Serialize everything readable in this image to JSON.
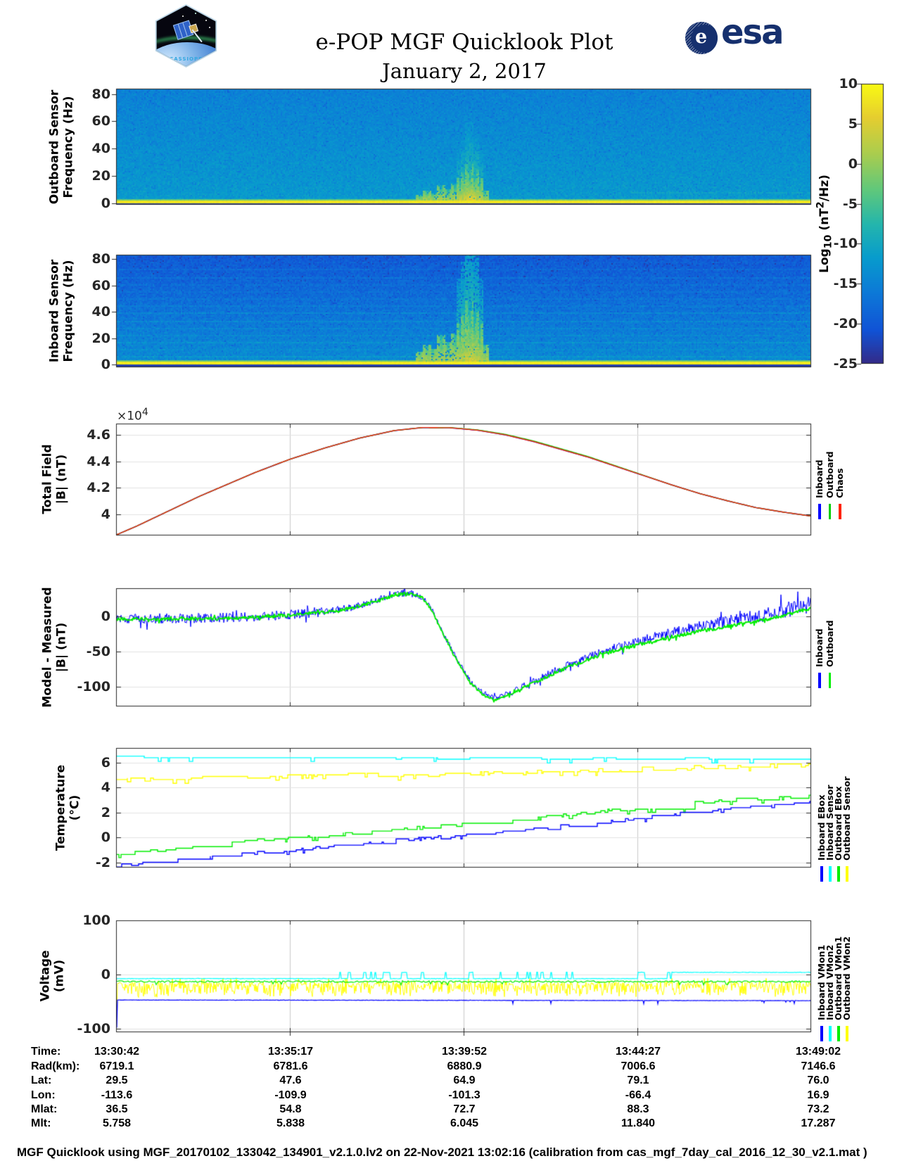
{
  "header": {
    "title": "e-POP MGF Quicklook Plot",
    "date": "January 2, 2017",
    "esa_text": "esa",
    "esa_e": "e",
    "cassiope_text": "CASSIOPE"
  },
  "x_axis": {
    "tick_labels": [
      "13:30:42",
      "13:35:17",
      "13:39:52",
      "13:44:27",
      "13:49:02"
    ]
  },
  "colorbar": {
    "label_prefix": "Log",
    "label_sub": "10",
    "label_mid": " (nT",
    "label_sup": "2",
    "label_suffix": "/Hz)",
    "tick_labels": [
      "10",
      "5",
      "0",
      "-5",
      "-10",
      "-15",
      "-20",
      "-25"
    ],
    "tick_values": [
      10,
      5,
      0,
      -5,
      -10,
      -15,
      -20,
      -25
    ],
    "lim": [
      -25,
      10
    ],
    "colormap": "parula"
  },
  "chart_data": [
    {
      "type": "heatmap",
      "name": "outboard-spectrogram",
      "ylabel": [
        "Outboard Sensor",
        "Frequency (Hz)"
      ],
      "ytick_values": [
        80,
        60,
        40,
        20,
        0
      ],
      "ytick_labels": [
        "80",
        "60",
        "40",
        "20",
        "0"
      ],
      "ylim": [
        0,
        84
      ],
      "background_log_power_bottom": -11.9,
      "background_log_power_top": -15.1,
      "dc_band_log_power": 8,
      "dc_band_max_hz": 1.35,
      "burst_times_frac": [
        0.437,
        0.447,
        0.455,
        0.468,
        0.478,
        0.488,
        0.496,
        0.503,
        0.509,
        0.5155,
        0.522,
        0.53
      ],
      "burst_heights_hz": [
        6,
        9,
        7,
        13,
        10,
        14,
        18,
        22,
        28,
        24,
        18,
        9
      ],
      "burst_strengths": [
        0.5,
        0.6,
        0.5,
        0.7,
        0.6,
        0.7,
        0.85,
        0.95,
        1.0,
        0.95,
        0.85,
        0.55
      ]
    },
    {
      "type": "heatmap",
      "name": "inboard-spectrogram",
      "ylabel": [
        "Inboard Sensor",
        "Frequency (Hz)"
      ],
      "ytick_values": [
        80,
        60,
        40,
        20,
        0
      ],
      "ytick_labels": [
        "80",
        "60",
        "40",
        "20",
        "0"
      ],
      "ylim": [
        0,
        85
      ],
      "background_log_power_bottom": -13.6,
      "background_log_power_top": -20.2,
      "dc_band_log_power": 8.6,
      "dc_band_max_hz": 2.1,
      "stripe_spacing_hz": 5.5,
      "burst_times_frac": [
        0.437,
        0.447,
        0.455,
        0.468,
        0.478,
        0.488,
        0.496,
        0.503,
        0.509,
        0.5155,
        0.522,
        0.53
      ],
      "burst_heights_hz": [
        10,
        15,
        12,
        22,
        17,
        24,
        31,
        37,
        48,
        41,
        31,
        15
      ],
      "burst_strengths": [
        0.45,
        0.55,
        0.45,
        0.63,
        0.54,
        0.63,
        0.77,
        0.86,
        0.9,
        0.86,
        0.77,
        0.5
      ]
    },
    {
      "type": "line",
      "name": "total-field",
      "ylabel": [
        "Total Field",
        "|B| (nT)"
      ],
      "y_mult": "×10",
      "y_mult_exp": "4",
      "ytick_values": [
        4.6,
        4.4,
        4.2,
        4
      ],
      "ytick_labels": [
        "4.6",
        "4.4",
        "4.2",
        "4"
      ],
      "ylim": [
        3.838,
        4.685
      ],
      "legend": {
        "labels": [
          "Inboard",
          "Outboard",
          "Chaos"
        ],
        "colors": [
          "#0000ff",
          "#00cc00",
          "#ff2200"
        ]
      },
      "points": [
        [
          0,
          3.842
        ],
        [
          0.03,
          3.91
        ],
        [
          0.06,
          3.985
        ],
        [
          0.09,
          4.06
        ],
        [
          0.12,
          4.135
        ],
        [
          0.16,
          4.225
        ],
        [
          0.2,
          4.315
        ],
        [
          0.25,
          4.415
        ],
        [
          0.3,
          4.5
        ],
        [
          0.35,
          4.575
        ],
        [
          0.4,
          4.632
        ],
        [
          0.44,
          4.655
        ],
        [
          0.48,
          4.654
        ],
        [
          0.52,
          4.635
        ],
        [
          0.56,
          4.6
        ],
        [
          0.6,
          4.55
        ],
        [
          0.64,
          4.49
        ],
        [
          0.68,
          4.43
        ],
        [
          0.72,
          4.36
        ],
        [
          0.76,
          4.29
        ],
        [
          0.8,
          4.22
        ],
        [
          0.84,
          4.155
        ],
        [
          0.88,
          4.1
        ],
        [
          0.92,
          4.05
        ],
        [
          0.96,
          4.015
        ],
        [
          1,
          3.985
        ]
      ],
      "outboard_offset": 0.005
    },
    {
      "type": "line",
      "name": "model-measured",
      "ylabel": [
        "Model - Measured",
        "|B| (nT)"
      ],
      "ytick_values": [
        0,
        -50,
        -100
      ],
      "ytick_labels": [
        "0",
        "-50",
        "-100"
      ],
      "ylim": [
        -128,
        40
      ],
      "legend": {
        "labels": [
          "Inboard",
          "Outboard"
        ],
        "colors": [
          "#0000ff",
          "#00ee00"
        ]
      },
      "points": [
        [
          0,
          -4
        ],
        [
          0.05,
          -4
        ],
        [
          0.1,
          -3.5
        ],
        [
          0.15,
          -3
        ],
        [
          0.2,
          -1
        ],
        [
          0.25,
          1.5
        ],
        [
          0.3,
          6
        ],
        [
          0.34,
          12
        ],
        [
          0.37,
          20
        ],
        [
          0.4,
          30
        ],
        [
          0.42,
          33
        ],
        [
          0.44,
          27
        ],
        [
          0.455,
          8
        ],
        [
          0.47,
          -25
        ],
        [
          0.49,
          -62
        ],
        [
          0.51,
          -95
        ],
        [
          0.53,
          -113
        ],
        [
          0.545,
          -118
        ],
        [
          0.56,
          -114
        ],
        [
          0.58,
          -105
        ],
        [
          0.6,
          -95
        ],
        [
          0.63,
          -81
        ],
        [
          0.66,
          -68
        ],
        [
          0.69,
          -57
        ],
        [
          0.72,
          -48
        ],
        [
          0.76,
          -38
        ],
        [
          0.8,
          -29
        ],
        [
          0.84,
          -21
        ],
        [
          0.88,
          -14
        ],
        [
          0.92,
          -7
        ],
        [
          0.96,
          1
        ],
        [
          1,
          12
        ]
      ]
    },
    {
      "type": "line",
      "name": "temperature",
      "ylabel": [
        "Temperature",
        "(°C)"
      ],
      "ytick_values": [
        6,
        4,
        2,
        0,
        -2
      ],
      "ytick_labels": [
        "6",
        "4",
        "2",
        "0",
        "-2"
      ],
      "ylim": [
        -2.4,
        7.2
      ],
      "legend": {
        "labels": [
          "Inboard EBox",
          "Inboard Sensor",
          "Outboard EBox",
          "Outboard Sensor"
        ],
        "colors": [
          "#0000ff",
          "#00ffff",
          "#00ee00",
          "#ffff00"
        ]
      },
      "series": [
        {
          "name": "Inboard EBox",
          "color": "#0000ff",
          "points": [
            [
              0,
              -2.3
            ],
            [
              0.08,
              -1.85
            ],
            [
              0.16,
              -1.45
            ],
            [
              0.25,
              -1.05
            ],
            [
              0.33,
              -0.6
            ],
            [
              0.42,
              -0.2
            ],
            [
              0.5,
              0.15
            ],
            [
              0.58,
              0.55
            ],
            [
              0.66,
              1.0
            ],
            [
              0.74,
              1.45
            ],
            [
              0.82,
              1.9
            ],
            [
              0.9,
              2.35
            ],
            [
              1,
              2.8
            ]
          ]
        },
        {
          "name": "Inboard Sensor",
          "color": "#00ffff",
          "points": [
            [
              0,
              6.42
            ],
            [
              0.2,
              6.38
            ],
            [
              0.4,
              6.35
            ],
            [
              0.6,
              6.33
            ],
            [
              0.8,
              6.3
            ],
            [
              1,
              6.25
            ]
          ]
        },
        {
          "name": "Outboard EBox",
          "color": "#00ee00",
          "points": [
            [
              0,
              -1.45
            ],
            [
              0.08,
              -0.9
            ],
            [
              0.16,
              -0.45
            ],
            [
              0.25,
              -0.05
            ],
            [
              0.33,
              0.3
            ],
            [
              0.42,
              0.65
            ],
            [
              0.5,
              1.0
            ],
            [
              0.58,
              1.4
            ],
            [
              0.66,
              1.85
            ],
            [
              0.74,
              2.3
            ],
            [
              0.82,
              2.7
            ],
            [
              0.9,
              3.0
            ],
            [
              1,
              3.3
            ]
          ]
        },
        {
          "name": "Outboard Sensor",
          "color": "#ffff00",
          "points": [
            [
              0,
              4.62
            ],
            [
              0.1,
              4.7
            ],
            [
              0.2,
              4.82
            ],
            [
              0.3,
              4.92
            ],
            [
              0.4,
              5.0
            ],
            [
              0.5,
              5.1
            ],
            [
              0.6,
              5.22
            ],
            [
              0.7,
              5.35
            ],
            [
              0.8,
              5.5
            ],
            [
              0.9,
              5.68
            ],
            [
              1,
              5.85
            ]
          ]
        }
      ]
    },
    {
      "type": "line",
      "name": "voltage",
      "ylabel": [
        "Voltage",
        "(mV)"
      ],
      "ytick_values": [
        100,
        0,
        -100
      ],
      "ytick_labels": [
        "100",
        "0",
        "-100"
      ],
      "ylim": [
        -106,
        100
      ],
      "legend": {
        "labels": [
          "Inboard VMon1",
          "Inboard VMon2",
          "Outboard VMon1",
          "Outboard VMon2"
        ],
        "colors": [
          "#0000ff",
          "#00ffff",
          "#00ee00",
          "#ffff00"
        ]
      },
      "series": [
        {
          "name": "Inboard VMon1",
          "color": "#0000ff",
          "base": -47,
          "transient_min": -98
        },
        {
          "name": "Inboard VMon2",
          "color": "#00ffff",
          "base": -7.5,
          "high": 4
        },
        {
          "name": "Outboard VMon1",
          "color": "#00ee00",
          "base": -13
        },
        {
          "name": "Outboard VMon2",
          "color": "#ffff00",
          "base": -15,
          "spike_min": -45,
          "transient_min": -75
        }
      ]
    }
  ],
  "table": {
    "rows": [
      {
        "label": "Time:",
        "values": [
          "13:30:42",
          "13:35:17",
          "13:39:52",
          "13:44:27",
          "13:49:02"
        ]
      },
      {
        "label": "Rad(km):",
        "values": [
          "6719.1",
          "6781.6",
          "6880.9",
          "7006.6",
          "7146.6"
        ]
      },
      {
        "label": "Lat:",
        "values": [
          "29.5",
          "47.6",
          "64.9",
          "79.1",
          "76.0"
        ]
      },
      {
        "label": "Lon:",
        "values": [
          "-113.6",
          "-109.9",
          "-101.3",
          "-66.4",
          "16.9"
        ]
      },
      {
        "label": "Mlat:",
        "values": [
          "36.5",
          "54.8",
          "72.7",
          "88.3",
          "73.2"
        ]
      },
      {
        "label": "Mlt:",
        "values": [
          "5.758",
          "5.838",
          "6.045",
          "11.840",
          "17.287"
        ]
      }
    ]
  },
  "footer": {
    "text": "MGF Quicklook using MGF_20170102_133042_134901_v2.1.0.lv2 on 22-Nov-2021 13:02:16 (calibration from cas_mgf_7day_cal_2016_12_30_v2.1.mat )"
  }
}
